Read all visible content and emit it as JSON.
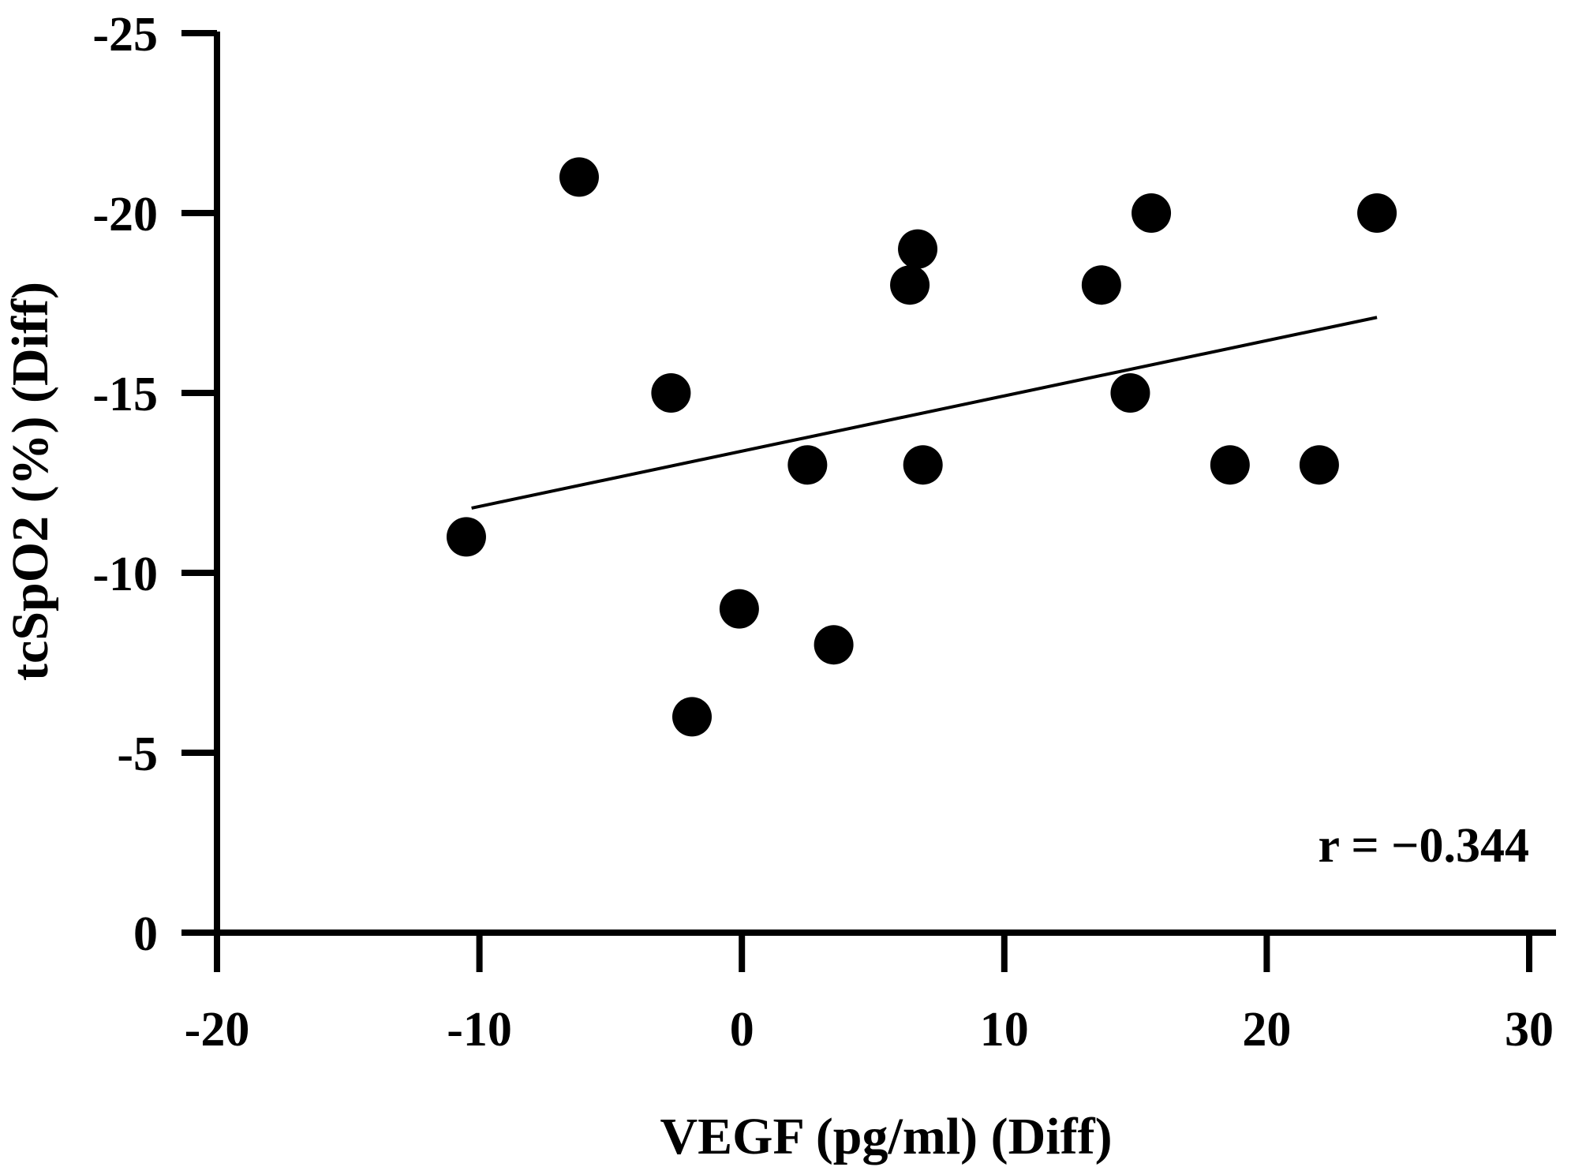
{
  "chart_data": {
    "type": "scatter",
    "title": "",
    "xlabel": "VEGF (pg/ml) (Diff)",
    "ylabel": "tcSpO2 (%) (Diff)",
    "xlim": [
      -20,
      30
    ],
    "ylim": [
      0,
      -25
    ],
    "x_ticks": [
      -20,
      -10,
      0,
      10,
      20,
      30
    ],
    "x_tick_labels": [
      "-20",
      "-10",
      "0",
      "10",
      "20",
      "30"
    ],
    "y_ticks": [
      0,
      -5,
      -10,
      -15,
      -20,
      -25
    ],
    "y_tick_labels": [
      "0",
      "-5",
      "-10",
      "-15",
      "-20",
      "-25"
    ],
    "grid": false,
    "annotation": "r = −0.344",
    "series": [
      {
        "name": "data",
        "points": [
          {
            "x": -10.5,
            "y": -11
          },
          {
            "x": -6.2,
            "y": -21
          },
          {
            "x": -2.7,
            "y": -15
          },
          {
            "x": -1.9,
            "y": -6
          },
          {
            "x": -0.1,
            "y": -9
          },
          {
            "x": 2.5,
            "y": -13
          },
          {
            "x": 3.5,
            "y": -8
          },
          {
            "x": 6.4,
            "y": -18
          },
          {
            "x": 6.7,
            "y": -19
          },
          {
            "x": 6.9,
            "y": -13
          },
          {
            "x": 13.7,
            "y": -18
          },
          {
            "x": 14.8,
            "y": -15
          },
          {
            "x": 15.6,
            "y": -20
          },
          {
            "x": 18.6,
            "y": -13
          },
          {
            "x": 22.0,
            "y": -13
          },
          {
            "x": 24.2,
            "y": -20
          }
        ]
      }
    ],
    "fit_line": {
      "x": [
        -10.3,
        24.2
      ],
      "y": [
        -11.8,
        -17.1
      ]
    }
  }
}
